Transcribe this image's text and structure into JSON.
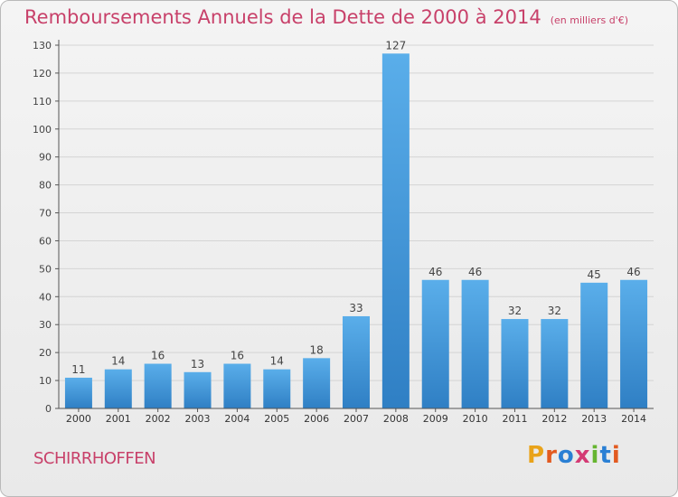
{
  "header": {
    "title": "Remboursements Annuels de la Dette de 2000 à 2014",
    "unit": "(en milliers d'€)"
  },
  "footer": {
    "commune": "SCHIRRHOFFEN",
    "logo": "Proxiti",
    "logo_colors": [
      "#e9a31a",
      "#e25a20",
      "#2a7fd4",
      "#d43a74",
      "#66b530",
      "#2a7fd4",
      "#e25a20"
    ]
  },
  "chart_data": {
    "type": "bar",
    "title": "Remboursements Annuels de la Dette de 2000 à 2014",
    "categories": [
      "2000",
      "2001",
      "2002",
      "2003",
      "2004",
      "2005",
      "2006",
      "2007",
      "2008",
      "2009",
      "2010",
      "2011",
      "2012",
      "2013",
      "2014"
    ],
    "values": [
      11,
      14,
      16,
      13,
      16,
      14,
      18,
      33,
      127,
      46,
      46,
      32,
      32,
      45,
      46
    ],
    "ylim": [
      0,
      130
    ],
    "yticks": [
      0,
      10,
      20,
      30,
      40,
      50,
      60,
      70,
      80,
      90,
      100,
      110,
      120,
      130
    ],
    "grid": true,
    "bar_color": "#4a9ee0"
  }
}
